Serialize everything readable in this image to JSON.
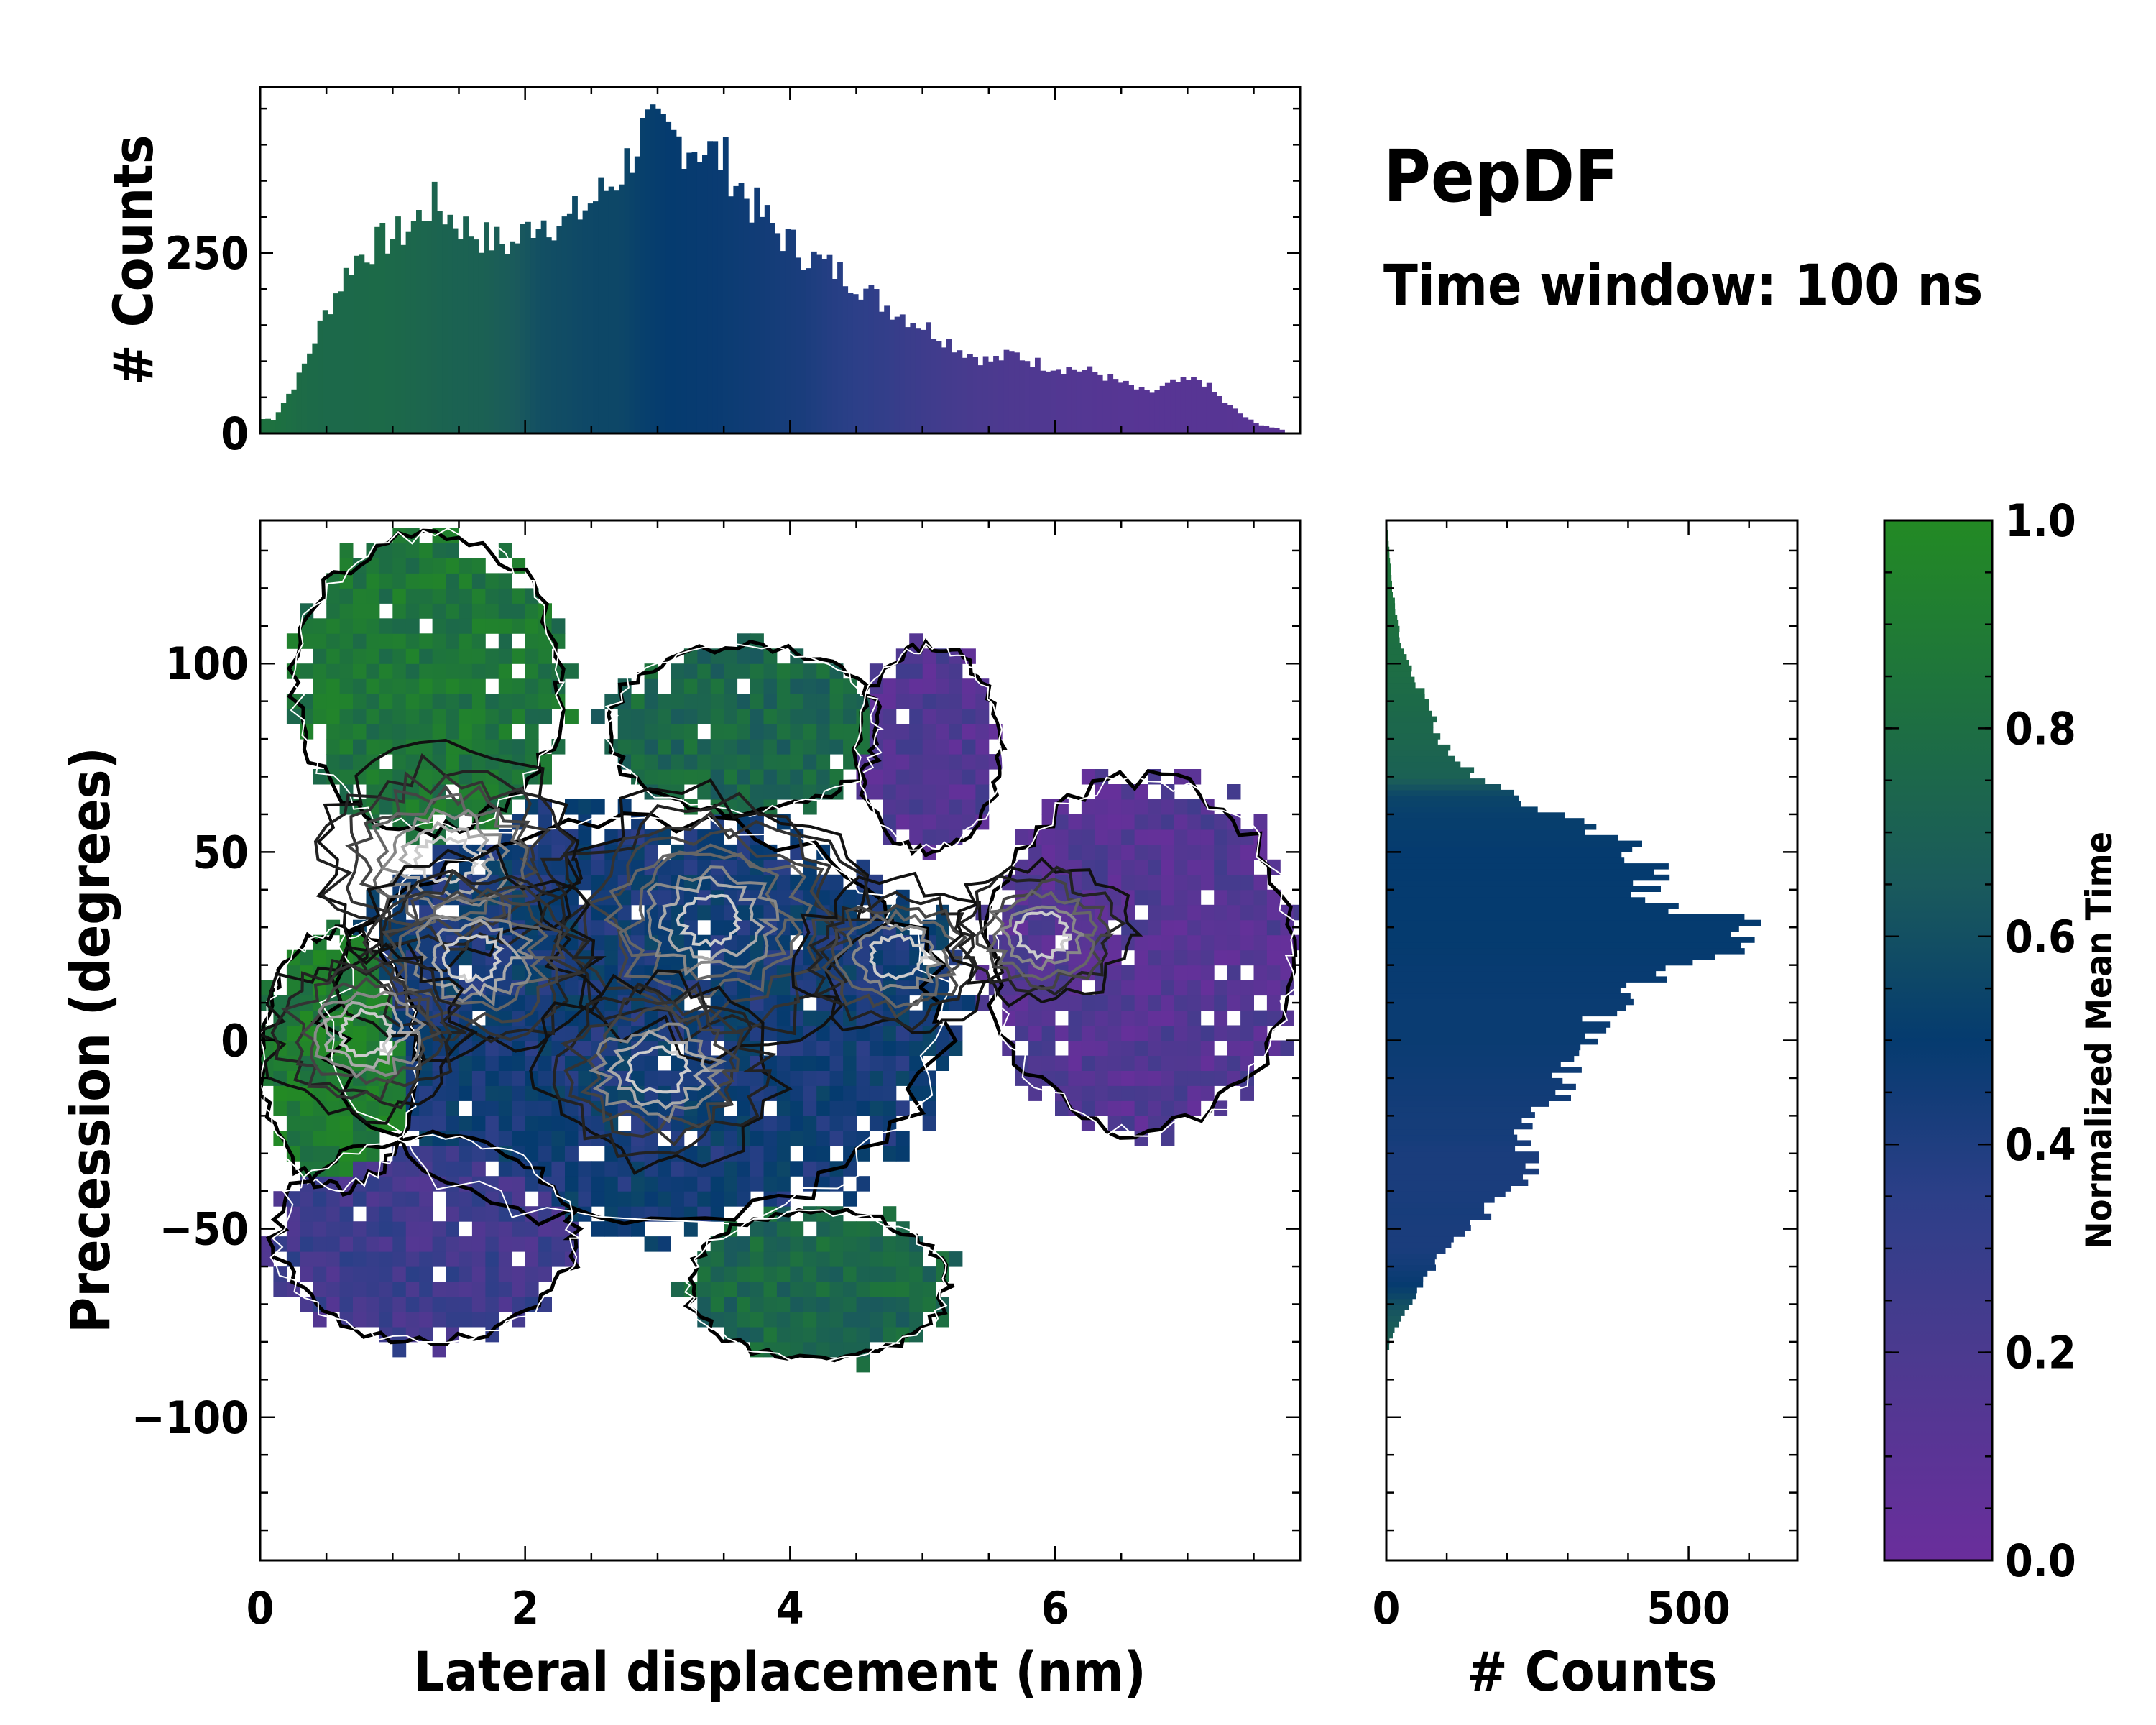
{
  "chart_data": [
    {
      "type": "histogram",
      "panel": "top-marginal",
      "title": "",
      "xlabel": "",
      "ylabel": "# Counts",
      "xlim": [
        0,
        7.85
      ],
      "ylim": [
        0,
        480
      ],
      "yticks": [
        {
          "v": 0,
          "label": "0"
        },
        {
          "v": 250,
          "label": "250"
        }
      ],
      "bin_centers_x": [
        0.1,
        0.3,
        0.5,
        0.7,
        0.9,
        1.1,
        1.3,
        1.5,
        1.7,
        1.9,
        2.1,
        2.3,
        2.5,
        2.7,
        2.9,
        3.1,
        3.3,
        3.5,
        3.7,
        3.9,
        4.1,
        4.3,
        4.5,
        4.7,
        4.9,
        5.1,
        5.3,
        5.5,
        5.7,
        5.9,
        6.1,
        6.3,
        6.5,
        6.7,
        6.9,
        7.1,
        7.3,
        7.5,
        7.7
      ],
      "counts": [
        20,
        80,
        170,
        240,
        265,
        280,
        320,
        290,
        270,
        260,
        300,
        290,
        320,
        355,
        420,
        410,
        400,
        380,
        320,
        280,
        250,
        230,
        210,
        180,
        160,
        140,
        115,
        100,
        110,
        95,
        90,
        85,
        70,
        55,
        70,
        75,
        40,
        15,
        5
      ],
      "mean_time": [
        0.82,
        0.78,
        0.76,
        0.76,
        0.77,
        0.75,
        0.73,
        0.71,
        0.7,
        0.66,
        0.6,
        0.58,
        0.56,
        0.56,
        0.52,
        0.5,
        0.49,
        0.48,
        0.46,
        0.44,
        0.42,
        0.38,
        0.35,
        0.32,
        0.28,
        0.25,
        0.22,
        0.2,
        0.18,
        0.17,
        0.15,
        0.14,
        0.13,
        0.12,
        0.12,
        0.12,
        0.12,
        0.11,
        0.1
      ]
    },
    {
      "type": "heatmap",
      "panel": "main-2d",
      "title": "",
      "xlabel": "Lateral displacement (nm)",
      "ylabel": "Precession (degrees)",
      "xlim": [
        0,
        7.85
      ],
      "ylim": [
        -138,
        138
      ],
      "xticks": [
        {
          "v": 0,
          "label": "0"
        },
        {
          "v": 2,
          "label": "2"
        },
        {
          "v": 4,
          "label": "4"
        },
        {
          "v": 6,
          "label": "6"
        }
      ],
      "yticks": [
        {
          "v": 100,
          "label": "100"
        },
        {
          "v": 50,
          "label": "50"
        },
        {
          "v": 0,
          "label": "0"
        },
        {
          "v": -50,
          "label": "−50"
        },
        {
          "v": -100,
          "label": "−100"
        }
      ],
      "color_encodes": "Normalized Mean Time",
      "regions": [
        {
          "name": "upper-left lobe",
          "x": [
            0.25,
            2.3
          ],
          "y": [
            55,
            135
          ],
          "mean_time": 0.85
        },
        {
          "name": "upper-middle lobe",
          "x": [
            2.6,
            4.7
          ],
          "y": [
            60,
            105
          ],
          "mean_time": 0.75
        },
        {
          "name": "upper-right lobe",
          "x": [
            4.5,
            5.6
          ],
          "y": [
            50,
            105
          ],
          "mean_time": 0.15
        },
        {
          "name": "right lobe",
          "x": [
            5.5,
            7.8
          ],
          "y": [
            -25,
            70
          ],
          "mean_time": 0.14
        },
        {
          "name": "central core",
          "x": [
            0.5,
            5.2
          ],
          "y": [
            -50,
            60
          ],
          "mean_time": 0.45
        },
        {
          "name": "left edge",
          "x": [
            0,
            1.2
          ],
          "y": [
            -40,
            30
          ],
          "mean_time": 0.9
        },
        {
          "name": "lower-left lobe",
          "x": [
            0.1,
            2.4
          ],
          "y": [
            -80,
            -25
          ],
          "mean_time": 0.25
        },
        {
          "name": "lower-middle lobe",
          "x": [
            3.2,
            5.2
          ],
          "y": [
            -85,
            -45
          ],
          "mean_time": 0.75
        }
      ],
      "density_peaks": [
        {
          "x": 3.4,
          "y": 32,
          "level": 1.0
        },
        {
          "x": 1.4,
          "y": 48,
          "level": 0.8
        },
        {
          "x": 1.6,
          "y": 22,
          "level": 0.75
        },
        {
          "x": 3.0,
          "y": -8,
          "level": 0.7
        },
        {
          "x": 0.8,
          "y": 2,
          "level": 0.6
        },
        {
          "x": 4.8,
          "y": 22,
          "level": 0.55
        },
        {
          "x": 5.9,
          "y": 28,
          "level": 0.5
        }
      ]
    },
    {
      "type": "histogram",
      "orientation": "horizontal",
      "panel": "right-marginal",
      "title": "",
      "xlabel": "# Counts",
      "ylabel": "",
      "xlim": [
        0,
        680
      ],
      "ylim": [
        -138,
        138
      ],
      "xticks": [
        {
          "v": 0,
          "label": "0"
        },
        {
          "v": 500,
          "label": "500"
        }
      ],
      "bin_centers_y": [
        -80,
        -75,
        -70,
        -65,
        -60,
        -55,
        -50,
        -45,
        -40,
        -35,
        -30,
        -25,
        -20,
        -15,
        -10,
        -5,
        0,
        5,
        10,
        15,
        20,
        25,
        30,
        35,
        40,
        45,
        50,
        55,
        60,
        65,
        70,
        75,
        80,
        85,
        90,
        95,
        100,
        105,
        110,
        115,
        120,
        125,
        130,
        135
      ],
      "counts": [
        5,
        20,
        40,
        60,
        80,
        100,
        140,
        170,
        200,
        230,
        240,
        220,
        250,
        280,
        300,
        320,
        330,
        350,
        380,
        430,
        480,
        560,
        600,
        500,
        420,
        430,
        420,
        350,
        280,
        220,
        150,
        110,
        90,
        80,
        70,
        50,
        35,
        25,
        20,
        15,
        10,
        8,
        5,
        2
      ],
      "mean_time": [
        0.7,
        0.66,
        0.6,
        0.5,
        0.45,
        0.42,
        0.42,
        0.43,
        0.42,
        0.42,
        0.42,
        0.44,
        0.44,
        0.45,
        0.46,
        0.47,
        0.48,
        0.48,
        0.48,
        0.49,
        0.49,
        0.5,
        0.5,
        0.5,
        0.5,
        0.5,
        0.5,
        0.51,
        0.52,
        0.55,
        0.7,
        0.72,
        0.74,
        0.75,
        0.77,
        0.78,
        0.8,
        0.8,
        0.82,
        0.83,
        0.84,
        0.85,
        0.86,
        0.86
      ]
    },
    {
      "type": "colorbar",
      "label": "Normalized Mean Time",
      "range": [
        0.0,
        1.0
      ],
      "ticks": [
        {
          "v": 0,
          "label": "0.0"
        },
        {
          "v": 0.2,
          "label": "0.2"
        },
        {
          "v": 0.4,
          "label": "0.4"
        },
        {
          "v": 0.6,
          "label": "0.6"
        },
        {
          "v": 0.8,
          "label": "0.8"
        },
        {
          "v": 1.0,
          "label": "1.0"
        }
      ],
      "colormap": [
        {
          "v": 0.0,
          "color": "#6a2e9c"
        },
        {
          "v": 0.2,
          "color": "#4b3a8f"
        },
        {
          "v": 0.35,
          "color": "#2c3f88"
        },
        {
          "v": 0.5,
          "color": "#053b6f"
        },
        {
          "v": 0.65,
          "color": "#1a5a5c"
        },
        {
          "v": 0.8,
          "color": "#1d6e43"
        },
        {
          "v": 1.0,
          "color": "#238a24"
        }
      ]
    }
  ],
  "annotation": {
    "title": "PepDF",
    "subtitle": "Time window: 100 ns"
  }
}
